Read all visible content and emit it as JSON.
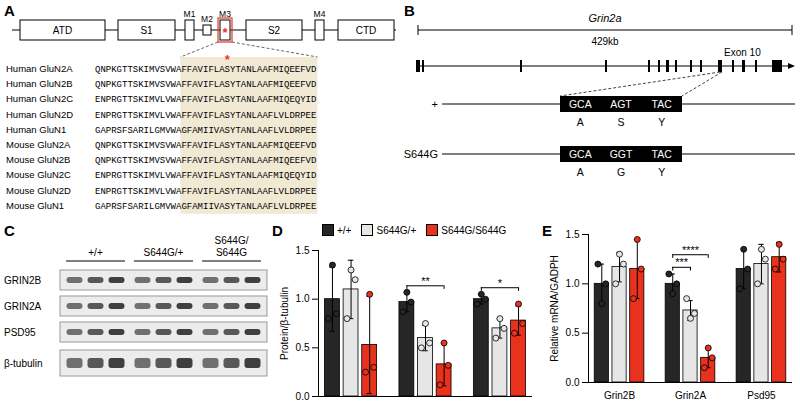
{
  "figure": {
    "panel_a": {
      "label": "A",
      "domains": [
        "ATD",
        "S1",
        "M1",
        "M2",
        "M3",
        "S2",
        "M4",
        "CTD"
      ],
      "mutation_mark": "*",
      "alignment": [
        {
          "name": "Human GluN2A",
          "sequence": [
            "QNPKGTTSKIMVSVWA",
            "FFAVIFLASYTANLAAFMIQEEFVD"
          ]
        },
        {
          "name": "Human GluN2B",
          "sequence": [
            "QNPKGTTSKIMVSVWA",
            "FFAVIFLASYTANLAAFMIQEEFVD"
          ]
        },
        {
          "name": "Human GluN2C",
          "sequence": [
            "ENPRGTTSKIMVLVWA",
            "FFAVIFLASYTANLAAFMIQEQYID"
          ]
        },
        {
          "name": "Human GluN2D",
          "sequence": [
            "ENPRGTTSKIMVLVWA",
            "FFAVIFLASYTANLAAFLVLDRPEE"
          ]
        },
        {
          "name": "Human GluN1",
          "sequence": [
            "GAPRSFSARILGMVWA",
            "GFAMIIVASYTANLAAFLVLDRPEE"
          ]
        },
        {
          "name": "Mouse GluN2A",
          "sequence": [
            "QNPKGTTSKIMVSVWA",
            "FFAVIFLASYTANLAAFMIQEEFVD"
          ]
        },
        {
          "name": "Mouse GluN2B",
          "sequence": [
            "QNPKGTTSKIMVSVWA",
            "FFAVIFLASYTANLAAFMIQEEFVD"
          ]
        },
        {
          "name": "Mouse GluN2C",
          "sequence": [
            "ENPRGTTSKIMVLVWA",
            "FFAVIFLASYTANLAAFMIQEQYID"
          ]
        },
        {
          "name": "Mouse GluN2D",
          "sequence": [
            "ENPRGTTSKIMVLVWA",
            "FFAVIFLASYTANLAAFLVLDRPEE"
          ]
        },
        {
          "name": "Mouse GluN1",
          "sequence": [
            "GAPRSFSARILGMVWA",
            "GFAMIIVASYTANLAAFLVLDRPEE"
          ]
        }
      ]
    },
    "panel_b": {
      "label": "B",
      "gene": "Grin2a",
      "length": "429kb",
      "exon": "Exon 10",
      "alleles": [
        {
          "name": "+",
          "codons": [
            "GCA",
            "AGT",
            "TAC"
          ],
          "residues": [
            "A",
            "S",
            "Y"
          ]
        },
        {
          "name": "S644G",
          "codons": [
            "GCA",
            "GGT",
            "TAC"
          ],
          "residues": [
            "A",
            "G",
            "Y"
          ]
        }
      ]
    },
    "panel_c": {
      "label": "C",
      "genotypes": [
        [
          "+/+"
        ],
        [
          "S644G/+"
        ],
        [
          "S644G/",
          "S644G"
        ]
      ],
      "proteins": [
        "GRIN2B",
        "GRIN2A",
        "PSD95",
        "β-tubulin"
      ]
    }
  },
  "chart_data": [
    {
      "panel": "D",
      "type": "bar",
      "ylabel": "Protein/β-tubulin",
      "categories": [
        null,
        null,
        null
      ],
      "ylim": [
        0,
        1.5
      ],
      "yticks": [
        {
          "value": 0,
          "label": "0.0"
        },
        0.5,
        {
          "value": 1,
          "label": "1.0"
        },
        1.5
      ],
      "legend": "top",
      "series": [
        {
          "name": "+/+",
          "color": "#262626",
          "values": [
            1.0,
            0.97,
            1.0
          ],
          "errors": [
            0.33,
            0.1,
            0.05
          ],
          "points": [
            [
              0.8,
              1.35,
              0.85
            ],
            [
              0.87,
              1.07,
              0.97
            ],
            [
              0.95,
              1.05,
              1.0
            ]
          ]
        },
        {
          "name": "S644G/+",
          "color": "#e6e6e6",
          "values": [
            1.1,
            0.6,
            0.7
          ],
          "errors": [
            0.3,
            0.13,
            0.1
          ],
          "points": [
            [
              0.8,
              1.3,
              1.2
            ],
            [
              0.5,
              0.75,
              0.55
            ],
            [
              0.6,
              0.8,
              0.7
            ]
          ]
        },
        {
          "name": "S644G/S644G",
          "color": "#e8321e",
          "values": [
            0.53,
            0.33,
            0.78
          ],
          "errors": [
            0.5,
            0.22,
            0.15
          ],
          "points": [
            [
              0.25,
              1.05,
              0.3
            ],
            [
              0.12,
              0.55,
              0.32
            ],
            [
              0.65,
              0.95,
              0.75
            ]
          ]
        }
      ],
      "annotations": [
        {
          "text": "**",
          "category": 1,
          "between": [
            "+/+",
            "S644G/S644G"
          ]
        },
        {
          "text": "*",
          "category": 2,
          "between": [
            "+/+",
            "S644G/S644G"
          ]
        }
      ]
    },
    {
      "panel": "E",
      "type": "bar",
      "ylabel": "Relative mRNA/GADPH",
      "categories": [
        "Grin2B",
        "Grin2A",
        "Psd95"
      ],
      "ylim": [
        0,
        1.5
      ],
      "yticks": [
        {
          "value": 0,
          "label": "0.0"
        },
        0.5,
        {
          "value": 1,
          "label": "1.0"
        },
        1.5
      ],
      "series": [
        {
          "name": "+/+",
          "color": "#262626",
          "values": [
            1.0,
            1.0,
            1.15
          ],
          "errors": [
            0.2,
            0.1,
            0.2
          ],
          "points": [
            [
              1.2,
              0.8,
              1.0
            ],
            [
              1.1,
              0.9,
              1.0
            ],
            [
              0.95,
              1.35,
              1.15
            ]
          ]
        },
        {
          "name": "S644G/+",
          "color": "#e6e6e6",
          "values": [
            1.17,
            0.73,
            1.2
          ],
          "errors": [
            0.15,
            0.1,
            0.2
          ],
          "points": [
            [
              1.0,
              1.3,
              1.2
            ],
            [
              0.85,
              0.65,
              0.7
            ],
            [
              1.0,
              1.35,
              1.25
            ]
          ]
        },
        {
          "name": "S644G/S644G",
          "color": "#e8321e",
          "values": [
            1.15,
            0.25,
            1.27
          ],
          "errors": [
            0.3,
            0.1,
            0.15
          ],
          "points": [
            [
              0.85,
              1.45,
              1.15
            ],
            [
              0.15,
              0.35,
              0.25
            ],
            [
              1.15,
              1.4,
              1.25
            ]
          ]
        }
      ],
      "annotations": [
        {
          "text": "***",
          "category": 1,
          "between": [
            "+/+",
            "S644G/+"
          ]
        },
        {
          "text": "****",
          "category": 1,
          "between": [
            "+/+",
            "S644G/S644G"
          ]
        }
      ]
    }
  ]
}
